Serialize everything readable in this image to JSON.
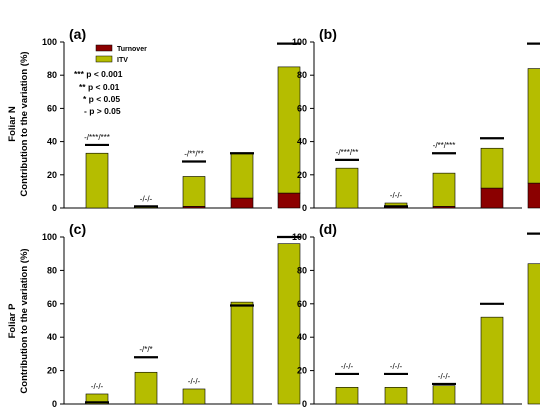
{
  "colors": {
    "turnover": "#8b0000",
    "itv": "#b5bd00",
    "axis": "#000000",
    "line": "#000000"
  },
  "y_axis_labels": {
    "top": {
      "trait": "Foliar N",
      "measure": "Contribution to the variation (%)"
    },
    "bottom": {
      "trait": "Foliar P",
      "measure": "Contribution to the variation (%)"
    }
  },
  "legend": {
    "items": [
      {
        "label": "Turnover",
        "color": "#8b0000"
      },
      {
        "label": "ITV",
        "color": "#b5bd00"
      }
    ]
  },
  "significance_key": [
    "*** p < 0.001",
    "** p < 0.01",
    "* p < 0.05",
    "- p > 0.05"
  ],
  "chart_data": [
    {
      "type": "bar",
      "panel": "(a)",
      "ylim": [
        0,
        100
      ],
      "yticks": [
        0,
        20,
        40,
        60,
        80,
        100
      ],
      "series": [
        {
          "name": "Turnover",
          "values": [
            0,
            0,
            1,
            6,
            9
          ]
        },
        {
          "name": "ITV",
          "values": [
            33,
            1,
            18,
            27,
            76
          ]
        }
      ],
      "total_lines": [
        38,
        1,
        28,
        33,
        99
      ],
      "annotations": [
        {
          "bar": 0,
          "text": "-/***/***"
        },
        {
          "bar": 1,
          "text": "-/-/-"
        },
        {
          "bar": 2,
          "text": "-/**/**"
        }
      ]
    },
    {
      "type": "bar",
      "panel": "(b)",
      "ylim": [
        0,
        100
      ],
      "yticks": [
        0,
        20,
        40,
        60,
        80,
        100
      ],
      "series": [
        {
          "name": "Turnover",
          "values": [
            0,
            1,
            1,
            12,
            15
          ]
        },
        {
          "name": "ITV",
          "values": [
            24,
            2,
            20,
            24,
            69
          ]
        }
      ],
      "total_lines": [
        29,
        1,
        33,
        42,
        99
      ],
      "annotations": [
        {
          "bar": 0,
          "text": "-/***/**"
        },
        {
          "bar": 1,
          "text": "-/-/-"
        },
        {
          "bar": 2,
          "text": "-/**/***"
        }
      ]
    },
    {
      "type": "bar",
      "panel": "(c)",
      "ylim": [
        0,
        100
      ],
      "yticks": [
        0,
        20,
        40,
        60,
        80,
        100
      ],
      "series": [
        {
          "name": "Turnover",
          "values": [
            0,
            0,
            0,
            0,
            0
          ]
        },
        {
          "name": "ITV",
          "values": [
            6,
            19,
            9,
            61,
            96
          ]
        }
      ],
      "total_lines": [
        1,
        28,
        null,
        59,
        100
      ],
      "annotations": [
        {
          "bar": 0,
          "text": "-/-/-"
        },
        {
          "bar": 1,
          "text": "-/*/*"
        },
        {
          "bar": 2,
          "text": "-/-/-"
        }
      ]
    },
    {
      "type": "bar",
      "panel": "(d)",
      "ylim": [
        0,
        100
      ],
      "yticks": [
        0,
        20,
        40,
        60,
        80,
        100
      ],
      "series": [
        {
          "name": "Turnover",
          "values": [
            0,
            0,
            0,
            0,
            0
          ]
        },
        {
          "name": "ITV",
          "values": [
            10,
            10,
            11,
            52,
            84
          ]
        }
      ],
      "total_lines": [
        18,
        18,
        12,
        60,
        102
      ],
      "annotations": [
        {
          "bar": 0,
          "text": "-/-/-"
        },
        {
          "bar": 1,
          "text": "-/-/-"
        },
        {
          "bar": 2,
          "text": "-/-/-"
        }
      ]
    }
  ]
}
